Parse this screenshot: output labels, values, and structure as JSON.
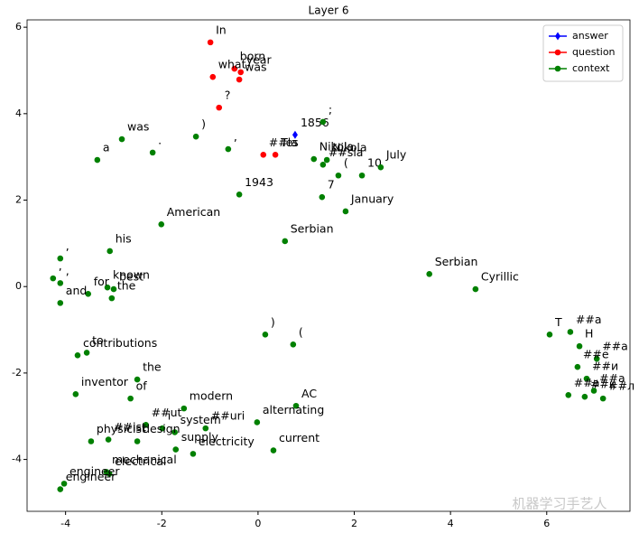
{
  "chart_data": {
    "type": "scatter",
    "title": "Layer 6",
    "watermark": "机器学习手艺人",
    "xlim": [
      -4.8,
      7.73
    ],
    "ylim": [
      -5.2,
      6.17
    ],
    "xticks": [
      -4,
      -2,
      0,
      2,
      4,
      6
    ],
    "yticks": [
      -4,
      -2,
      0,
      2,
      4,
      6
    ],
    "legend": "upper right",
    "series": [
      {
        "name": "answer",
        "color": "#0000ff",
        "marker": "diamond",
        "x": [
          0.77
        ],
        "values": [
          3.51
        ],
        "labels": [
          "1856"
        ]
      },
      {
        "name": "question",
        "color": "#ff0000",
        "marker": "circle",
        "x": [
          -0.99,
          -0.49,
          -0.36,
          -0.94,
          -0.39,
          -0.81,
          0.11,
          0.36
        ],
        "values": [
          5.65,
          5.04,
          4.96,
          4.85,
          4.79,
          4.14,
          3.05,
          3.05
        ],
        "labels": [
          "In",
          "born",
          "year",
          "what",
          "was",
          "?",
          "##la",
          "Tes"
        ]
      },
      {
        "name": "context",
        "color": "#008000",
        "marker": "circle",
        "x": [
          1.35,
          -2.83,
          -1.29,
          -0.62,
          -2.19,
          -3.34,
          1.16,
          1.35,
          1.43,
          1.67,
          2.16,
          2.55,
          -0.39,
          1.33,
          1.82,
          -2.01,
          0.56,
          -3.08,
          -4.11,
          3.56,
          4.52,
          -4.26,
          -4.11,
          -3.13,
          -3.0,
          -3.53,
          -3.04,
          -4.11,
          0.15,
          0.73,
          6.06,
          6.49,
          6.68,
          7.04,
          6.64,
          6.83,
          6.45,
          6.79,
          6.98,
          7.17,
          -3.75,
          -3.56,
          -2.51,
          -3.79,
          -2.65,
          -1.54,
          0.79,
          -0.02,
          -2.33,
          -1.09,
          -1.99,
          -1.73,
          -3.11,
          -3.47,
          -2.51,
          -1.71,
          -1.35,
          0.32,
          -3.15,
          -3.09,
          -4.03,
          -4.11
        ],
        "values": [
          3.81,
          3.41,
          3.47,
          3.18,
          3.1,
          2.93,
          2.95,
          2.82,
          2.93,
          2.57,
          2.57,
          2.76,
          2.13,
          2.07,
          1.74,
          1.44,
          1.05,
          0.82,
          0.65,
          0.29,
          -0.06,
          0.19,
          0.08,
          -0.02,
          -0.06,
          -0.17,
          -0.27,
          -0.38,
          -1.11,
          -1.34,
          -1.11,
          -1.05,
          -1.38,
          -1.67,
          -1.86,
          -2.13,
          -2.51,
          -2.55,
          -2.41,
          -2.59,
          -1.59,
          -1.53,
          -2.15,
          -2.49,
          -2.59,
          -2.82,
          -2.76,
          -3.14,
          -3.2,
          -3.28,
          -3.28,
          -3.37,
          -3.54,
          -3.58,
          -3.58,
          -3.77,
          -3.87,
          -3.79,
          -4.29,
          -4.33,
          -4.56,
          -4.69
        ],
        "labels": [
          ";",
          "was",
          ")",
          ",",
          ".",
          "a",
          "Nikola",
          "##sla",
          "Nikola",
          "(",
          "10",
          "July",
          "1943",
          "7",
          "January",
          "American",
          "Serbian",
          "his",
          ",",
          "Serbian",
          "Cyrillic",
          ",",
          ",",
          "known",
          "best",
          "for",
          "the",
          "and",
          ")",
          "(",
          "T",
          "##a",
          "H",
          "##a",
          "##e",
          "##и",
          "##a",
          "##к",
          "##a",
          "##л",
          "contributions",
          "to",
          "the",
          "inventor",
          "of",
          "modern",
          "AC",
          "alternating",
          "##ut",
          "##uri",
          "i",
          "system",
          "##ist",
          "physicist",
          "design",
          "supply",
          "electricity",
          "current",
          "mechanical",
          "electrical",
          "engineer",
          "engineer"
        ]
      }
    ]
  }
}
